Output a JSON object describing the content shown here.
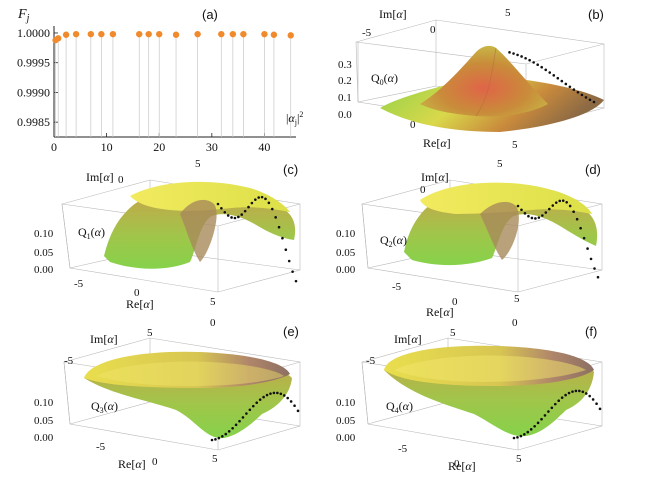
{
  "figure": {
    "panel_letters": [
      "(a)",
      "(b)",
      "(c)",
      "(d)",
      "(e)",
      "(f)"
    ]
  },
  "chart_data": [
    {
      "type": "scatter",
      "panel": "(a)",
      "ylabel": "F_j",
      "xlabel": "|α_j|^2",
      "xlim": [
        0,
        46
      ],
      "ylim": [
        0.99825,
        1.00005
      ],
      "x_ticks": [
        "0",
        "10",
        "20",
        "30",
        "40"
      ],
      "y_ticks": [
        "1.0000",
        "0.9995",
        "0.9990",
        "0.9985"
      ],
      "x": [
        0.3,
        0.8,
        2.3,
        4.2,
        7.0,
        9.0,
        11.2,
        16.2,
        18.0,
        20.0,
        23.2,
        27.3,
        31.8,
        34.0,
        36.0,
        40.0,
        41.8,
        45.0
      ],
      "y": [
        0.99988,
        0.99991,
        0.99997,
        0.99998,
        0.99998,
        0.99998,
        0.99998,
        0.99998,
        0.99998,
        0.99998,
        0.99997,
        0.99998,
        0.99998,
        0.99998,
        0.99998,
        0.99998,
        0.99997,
        0.99996
      ],
      "color": "#f08a2c",
      "grid": false
    },
    {
      "type": "surface",
      "panel": "(b)",
      "zlabel": "Q_0(α)",
      "xlabel": "Re[α]",
      "ylabel": "Im[α]",
      "x_ticks": [
        "0",
        "5"
      ],
      "y_ticks": [
        "-5",
        "0",
        "5"
      ],
      "z_ticks": [
        "0.3",
        "0.2",
        "0.1",
        "0.0"
      ]
    },
    {
      "type": "surface",
      "panel": "(c)",
      "zlabel": "Q_1(α)",
      "xlabel": "Re[α]",
      "ylabel": "Im[α]",
      "x_ticks": [
        "-5",
        "0",
        "5"
      ],
      "y_ticks": [
        "0",
        "5"
      ],
      "z_ticks": [
        "0.10",
        "0.05",
        "0.00"
      ]
    },
    {
      "type": "surface",
      "panel": "(d)",
      "zlabel": "Q_2(α)",
      "xlabel": "Re[α]",
      "ylabel": "Im[α]",
      "x_ticks": [
        "-5",
        "0",
        "5"
      ],
      "y_ticks": [
        "0",
        "5"
      ],
      "z_ticks": [
        "0.10",
        "0.05",
        "0.00"
      ]
    },
    {
      "type": "surface",
      "panel": "(e)",
      "zlabel": "Q_3(α)",
      "xlabel": "Re[α]",
      "ylabel": "Im[α]",
      "x_ticks": [
        "-5",
        "0",
        "5"
      ],
      "y_ticks": [
        "5",
        "0",
        "-5"
      ],
      "z_ticks": [
        "0.10",
        "0.05",
        "0.00"
      ]
    },
    {
      "type": "surface",
      "panel": "(f)",
      "zlabel": "Q_4(α)",
      "xlabel": "Re[α]",
      "ylabel": "Im[α]",
      "x_ticks": [
        "-5",
        "0",
        "5"
      ],
      "y_ticks": [
        "5",
        "0",
        "-5"
      ],
      "z_ticks": [
        "0.10",
        "0.05",
        "0.00"
      ]
    }
  ]
}
